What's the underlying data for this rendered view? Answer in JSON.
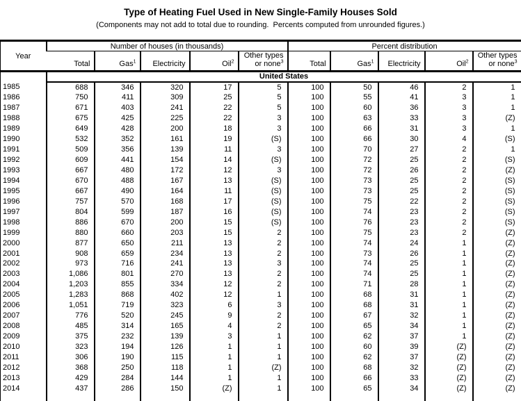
{
  "title": "Type of Heating Fuel Used in New Single-Family Houses Sold",
  "subtitle": "(Components may not add to total due to rounding.  Percents computed from unrounded figures.)",
  "table": {
    "year_header": "Year",
    "groups": [
      {
        "label": "Number of houses (in thousands)"
      },
      {
        "label": "Percent distribution"
      }
    ],
    "columns": [
      {
        "label": "Total",
        "sup": ""
      },
      {
        "label": "Gas",
        "sup": "1"
      },
      {
        "label": "Electricity",
        "sup": ""
      },
      {
        "label": "Oil",
        "sup": "2"
      },
      {
        "label": "Other types",
        "label2": "or none",
        "sup": "3"
      }
    ],
    "region_label": "United States",
    "rows": [
      {
        "year": "1985",
        "number": [
          "688",
          "346",
          "320",
          "17",
          "5"
        ],
        "percent": [
          "100",
          "50",
          "46",
          "2",
          "1"
        ]
      },
      {
        "year": "1986",
        "number": [
          "750",
          "411",
          "309",
          "25",
          "5"
        ],
        "percent": [
          "100",
          "55",
          "41",
          "3",
          "1"
        ]
      },
      {
        "year": "1987",
        "number": [
          "671",
          "403",
          "241",
          "22",
          "5"
        ],
        "percent": [
          "100",
          "60",
          "36",
          "3",
          "1"
        ]
      },
      {
        "year": "1988",
        "number": [
          "675",
          "425",
          "225",
          "22",
          "3"
        ],
        "percent": [
          "100",
          "63",
          "33",
          "3",
          "(Z)"
        ]
      },
      {
        "year": "1989",
        "number": [
          "649",
          "428",
          "200",
          "18",
          "3"
        ],
        "percent": [
          "100",
          "66",
          "31",
          "3",
          "1"
        ]
      },
      {
        "year": "1990",
        "number": [
          "532",
          "352",
          "161",
          "19",
          "(S)"
        ],
        "percent": [
          "100",
          "66",
          "30",
          "4",
          "(S)"
        ]
      },
      {
        "year": "1991",
        "number": [
          "509",
          "356",
          "139",
          "11",
          "3"
        ],
        "percent": [
          "100",
          "70",
          "27",
          "2",
          "1"
        ]
      },
      {
        "year": "1992",
        "number": [
          "609",
          "441",
          "154",
          "14",
          "(S)"
        ],
        "percent": [
          "100",
          "72",
          "25",
          "2",
          "(S)"
        ]
      },
      {
        "year": "1993",
        "number": [
          "667",
          "480",
          "172",
          "12",
          "3"
        ],
        "percent": [
          "100",
          "72",
          "26",
          "2",
          "(Z)"
        ]
      },
      {
        "year": "1994",
        "number": [
          "670",
          "488",
          "167",
          "13",
          "(S)"
        ],
        "percent": [
          "100",
          "73",
          "25",
          "2",
          "(S)"
        ]
      },
      {
        "year": "1995",
        "number": [
          "667",
          "490",
          "164",
          "11",
          "(S)"
        ],
        "percent": [
          "100",
          "73",
          "25",
          "2",
          "(S)"
        ]
      },
      {
        "year": "1996",
        "number": [
          "757",
          "570",
          "168",
          "17",
          "(S)"
        ],
        "percent": [
          "100",
          "75",
          "22",
          "2",
          "(S)"
        ]
      },
      {
        "year": "1997",
        "number": [
          "804",
          "599",
          "187",
          "16",
          "(S)"
        ],
        "percent": [
          "100",
          "74",
          "23",
          "2",
          "(S)"
        ]
      },
      {
        "year": "1998",
        "number": [
          "886",
          "670",
          "200",
          "15",
          "(S)"
        ],
        "percent": [
          "100",
          "76",
          "23",
          "2",
          "(S)"
        ]
      },
      {
        "year": "1999",
        "number": [
          "880",
          "660",
          "203",
          "15",
          "2"
        ],
        "percent": [
          "100",
          "75",
          "23",
          "2",
          "(Z)"
        ]
      },
      {
        "year": "2000",
        "number": [
          "877",
          "650",
          "211",
          "13",
          "2"
        ],
        "percent": [
          "100",
          "74",
          "24",
          "1",
          "(Z)"
        ]
      },
      {
        "year": "2001",
        "number": [
          "908",
          "659",
          "234",
          "13",
          "2"
        ],
        "percent": [
          "100",
          "73",
          "26",
          "1",
          "(Z)"
        ]
      },
      {
        "year": "2002",
        "number": [
          "973",
          "716",
          "241",
          "13",
          "3"
        ],
        "percent": [
          "100",
          "74",
          "25",
          "1",
          "(Z)"
        ]
      },
      {
        "year": "2003",
        "number": [
          "1,086",
          "801",
          "270",
          "13",
          "2"
        ],
        "percent": [
          "100",
          "74",
          "25",
          "1",
          "(Z)"
        ]
      },
      {
        "year": "2004",
        "number": [
          "1,203",
          "855",
          "334",
          "12",
          "2"
        ],
        "percent": [
          "100",
          "71",
          "28",
          "1",
          "(Z)"
        ]
      },
      {
        "year": "2005",
        "number": [
          "1,283",
          "868",
          "402",
          "12",
          "1"
        ],
        "percent": [
          "100",
          "68",
          "31",
          "1",
          "(Z)"
        ]
      },
      {
        "year": "2006",
        "number": [
          "1,051",
          "719",
          "323",
          "6",
          "3"
        ],
        "percent": [
          "100",
          "68",
          "31",
          "1",
          "(Z)"
        ]
      },
      {
        "year": "2007",
        "number": [
          "776",
          "520",
          "245",
          "9",
          "2"
        ],
        "percent": [
          "100",
          "67",
          "32",
          "1",
          "(Z)"
        ]
      },
      {
        "year": "2008",
        "number": [
          "485",
          "314",
          "165",
          "4",
          "2"
        ],
        "percent": [
          "100",
          "65",
          "34",
          "1",
          "(Z)"
        ]
      },
      {
        "year": "2009",
        "number": [
          "375",
          "232",
          "139",
          "3",
          "1"
        ],
        "percent": [
          "100",
          "62",
          "37",
          "1",
          "(Z)"
        ]
      },
      {
        "year": "2010",
        "number": [
          "323",
          "194",
          "126",
          "1",
          "1"
        ],
        "percent": [
          "100",
          "60",
          "39",
          "(Z)",
          "(Z)"
        ]
      },
      {
        "year": "2011",
        "number": [
          "306",
          "190",
          "115",
          "1",
          "1"
        ],
        "percent": [
          "100",
          "62",
          "37",
          "(Z)",
          "(Z)"
        ]
      },
      {
        "year": "2012",
        "number": [
          "368",
          "250",
          "118",
          "1",
          "(Z)"
        ],
        "percent": [
          "100",
          "68",
          "32",
          "(Z)",
          "(Z)"
        ]
      },
      {
        "year": "2013",
        "number": [
          "429",
          "284",
          "144",
          "1",
          "1"
        ],
        "percent": [
          "100",
          "66",
          "33",
          "(Z)",
          "(Z)"
        ]
      },
      {
        "year": "2014",
        "number": [
          "437",
          "286",
          "150",
          "(Z)",
          "1"
        ],
        "percent": [
          "100",
          "65",
          "34",
          "(Z)",
          "(Z)"
        ]
      }
    ]
  }
}
